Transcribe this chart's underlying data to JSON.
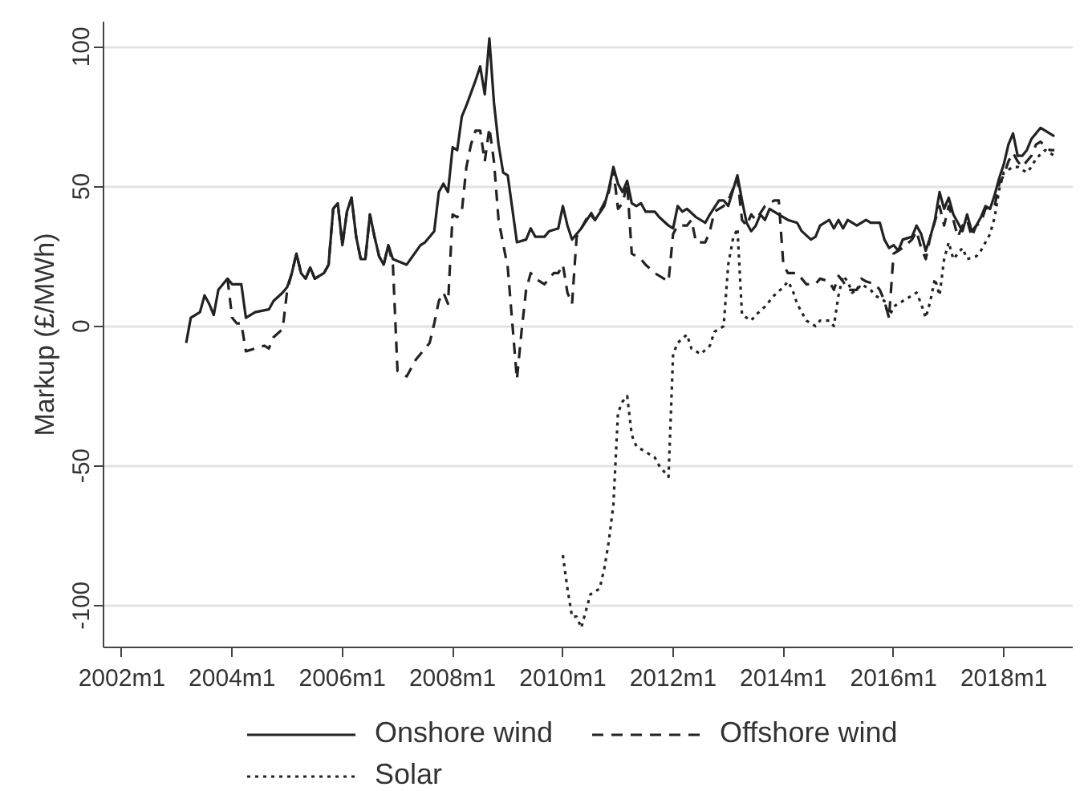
{
  "chart_data": {
    "type": "line",
    "ylabel": "Markup (£/MWh)",
    "xlim": [
      "2001-09",
      "2019-04"
    ],
    "xticks": [
      {
        "value": "2002-01",
        "label": "2002m1"
      },
      {
        "value": "2004-01",
        "label": "2004m1"
      },
      {
        "value": "2006-01",
        "label": "2006m1"
      },
      {
        "value": "2008-01",
        "label": "2008m1"
      },
      {
        "value": "2010-01",
        "label": "2010m1"
      },
      {
        "value": "2012-01",
        "label": "2012m1"
      },
      {
        "value": "2014-01",
        "label": "2014m1"
      },
      {
        "value": "2016-01",
        "label": "2016m1"
      },
      {
        "value": "2018-01",
        "label": "2018m1"
      }
    ],
    "ylim": [
      -115,
      109
    ],
    "yticks": [
      -100,
      -50,
      0,
      50,
      100
    ],
    "grid": "y",
    "legend": "bottom",
    "series": [
      {
        "name": "Onshore wind",
        "color": "#222222",
        "line_style": "solid",
        "x": [
          "2003-03",
          "2003-04",
          "2003-05",
          "2003-06",
          "2003-07",
          "2003-08",
          "2003-09",
          "2003-10",
          "2003-11",
          "2003-12",
          "2004-01",
          "2004-03",
          "2004-04",
          "2004-06",
          "2004-09",
          "2004-10",
          "2004-12",
          "2005-01",
          "2005-02",
          "2005-03",
          "2005-04",
          "2005-05",
          "2005-06",
          "2005-07",
          "2005-09",
          "2005-10",
          "2005-11",
          "2005-12",
          "2006-01",
          "2006-02",
          "2006-03",
          "2006-04",
          "2006-05",
          "2006-06",
          "2006-07",
          "2006-08",
          "2006-09",
          "2006-10",
          "2006-11",
          "2006-12",
          "2007-03",
          "2007-06",
          "2007-07",
          "2007-09",
          "2007-10",
          "2007-11",
          "2007-12",
          "2008-01",
          "2008-02",
          "2008-03",
          "2008-04",
          "2008-06",
          "2008-07",
          "2008-08",
          "2008-09",
          "2008-10",
          "2008-11",
          "2008-12",
          "2009-01",
          "2009-03",
          "2009-05",
          "2009-06",
          "2009-07",
          "2009-09",
          "2009-10",
          "2009-12",
          "2010-01",
          "2010-02",
          "2010-03",
          "2010-05",
          "2010-07",
          "2010-08",
          "2010-10",
          "2010-11",
          "2010-12",
          "2011-01",
          "2011-02",
          "2011-03",
          "2011-04",
          "2011-05",
          "2011-06",
          "2011-07",
          "2011-09",
          "2011-10",
          "2011-12",
          "2012-01",
          "2012-02",
          "2012-03",
          "2012-04",
          "2012-06",
          "2012-08",
          "2012-09",
          "2012-11",
          "2012-12",
          "2013-01",
          "2013-03",
          "2013-04",
          "2013-05",
          "2013-06",
          "2013-07",
          "2013-08",
          "2013-09",
          "2013-10",
          "2013-12",
          "2014-02",
          "2014-04",
          "2014-05",
          "2014-07",
          "2014-08",
          "2014-09",
          "2014-11",
          "2014-12",
          "2015-01",
          "2015-02",
          "2015-03",
          "2015-05",
          "2015-07",
          "2015-08",
          "2015-10",
          "2015-11",
          "2015-12",
          "2016-01",
          "2016-02",
          "2016-03",
          "2016-05",
          "2016-06",
          "2016-07",
          "2016-08",
          "2016-09",
          "2016-10",
          "2016-11",
          "2016-12",
          "2017-01",
          "2017-02",
          "2017-04",
          "2017-05",
          "2017-06",
          "2017-07",
          "2017-08",
          "2017-09",
          "2017-10",
          "2017-11",
          "2017-12",
          "2018-01",
          "2018-02",
          "2018-03",
          "2018-04",
          "2018-05",
          "2018-06",
          "2018-07",
          "2018-09",
          "2018-11",
          "2018-12"
        ],
        "values": [
          -6,
          3,
          4,
          5,
          11,
          8,
          4,
          13,
          15,
          17,
          15,
          15,
          3,
          5,
          6,
          9,
          12,
          14,
          19,
          26,
          19,
          17,
          21,
          17,
          19,
          22,
          42,
          44,
          29,
          41,
          46,
          32,
          24,
          24,
          40,
          32,
          25,
          22,
          29,
          24,
          22,
          29,
          30,
          34,
          48,
          51,
          48,
          64,
          63,
          75,
          79,
          88,
          93,
          83,
          103,
          80,
          65,
          55,
          54,
          30,
          31,
          35,
          32,
          32,
          34,
          35,
          43,
          36,
          31,
          35,
          40,
          38,
          43,
          49,
          57,
          51,
          48,
          52,
          44,
          43,
          44,
          41,
          41,
          39,
          36,
          35,
          43,
          41,
          42,
          39,
          37,
          40,
          45,
          45,
          43,
          54,
          45,
          37,
          34,
          36,
          40,
          38,
          42,
          40,
          38,
          37,
          34,
          31,
          32,
          36,
          38,
          35,
          38,
          35,
          38,
          36,
          38,
          37,
          37,
          31,
          28,
          29,
          27,
          31,
          32,
          36,
          33,
          27,
          32,
          38,
          48,
          42,
          46,
          40,
          34,
          40,
          34,
          36,
          39,
          43,
          42,
          47,
          53,
          58,
          65,
          69,
          61,
          61,
          63,
          67,
          71,
          69,
          68
        ]
      },
      {
        "name": "Offshore wind",
        "color": "#222222",
        "line_style": "dashed",
        "x": [
          "2003-12",
          "2004-01",
          "2004-02",
          "2004-03",
          "2004-04",
          "2004-06",
          "2004-08",
          "2004-09",
          "2004-10",
          "2004-12",
          "2005-01",
          "2005-02",
          "2005-03",
          "2005-04",
          "2005-05",
          "2005-06",
          "2005-07",
          "2005-09",
          "2005-10",
          "2005-11",
          "2005-12",
          "2006-01",
          "2006-02",
          "2006-03",
          "2006-04",
          "2006-05",
          "2006-06",
          "2006-07",
          "2006-08",
          "2006-09",
          "2006-10",
          "2006-11",
          "2006-12",
          "2007-01",
          "2007-03",
          "2007-05",
          "2007-08",
          "2007-09",
          "2007-10",
          "2007-11",
          "2007-12",
          "2008-01",
          "2008-02",
          "2008-03",
          "2008-04",
          "2008-05",
          "2008-06",
          "2008-07",
          "2008-08",
          "2008-09",
          "2008-10",
          "2008-11",
          "2009-01",
          "2009-02",
          "2009-03",
          "2009-04",
          "2009-05",
          "2009-06",
          "2009-07",
          "2009-09",
          "2009-11",
          "2009-12",
          "2010-01",
          "2010-02",
          "2010-03",
          "2010-04",
          "2010-05",
          "2010-07",
          "2010-08",
          "2010-10",
          "2010-11",
          "2010-12",
          "2011-01",
          "2011-02",
          "2011-03",
          "2011-04",
          "2011-06",
          "2011-07",
          "2011-09",
          "2011-11",
          "2011-12",
          "2012-01",
          "2012-02",
          "2012-04",
          "2012-05",
          "2012-06",
          "2012-08",
          "2012-09",
          "2012-10",
          "2012-12",
          "2013-01",
          "2013-03",
          "2013-04",
          "2013-05",
          "2013-06",
          "2013-07",
          "2013-09",
          "2013-10",
          "2013-11",
          "2013-12",
          "2014-01",
          "2014-02",
          "2014-04",
          "2014-06",
          "2014-08",
          "2014-09",
          "2014-11",
          "2014-12",
          "2015-01",
          "2015-02",
          "2015-03",
          "2015-05",
          "2015-06",
          "2015-07",
          "2015-09",
          "2015-10",
          "2015-11",
          "2015-12",
          "2016-01",
          "2016-02",
          "2016-03",
          "2016-05",
          "2016-06",
          "2016-07",
          "2016-08",
          "2016-09",
          "2016-11",
          "2016-12",
          "2017-01",
          "2017-02",
          "2017-03",
          "2017-04",
          "2017-05",
          "2017-06",
          "2017-07",
          "2017-08",
          "2017-09",
          "2017-11",
          "2017-12",
          "2018-01",
          "2018-02",
          "2018-03",
          "2018-04",
          "2018-05",
          "2018-06",
          "2018-07",
          "2018-08",
          "2018-09",
          "2018-11",
          "2018-12"
        ],
        "values": [
          17,
          3,
          1,
          1,
          -9,
          -8,
          -7,
          -8,
          -4,
          -1,
          13,
          19,
          26,
          19,
          17,
          21,
          17,
          19,
          22,
          42,
          44,
          29,
          41,
          46,
          32,
          24,
          24,
          40,
          32,
          25,
          22,
          29,
          22,
          -16,
          -18,
          -12,
          -6,
          1,
          9,
          12,
          8,
          40,
          39,
          41,
          57,
          65,
          70,
          70,
          59,
          71,
          59,
          38,
          21,
          1,
          -19,
          -2,
          13,
          19,
          17,
          15,
          19,
          19,
          22,
          12,
          8,
          32,
          35,
          41,
          38,
          44,
          48,
          56,
          42,
          44,
          51,
          26,
          24,
          22,
          19,
          17,
          16,
          33,
          36,
          36,
          38,
          30,
          30,
          34,
          41,
          43,
          45,
          53,
          38,
          36,
          40,
          38,
          43,
          44,
          45,
          45,
          22,
          19,
          19,
          15,
          15,
          17,
          16,
          13,
          18,
          16,
          13,
          13,
          17,
          16,
          15,
          13,
          9,
          3,
          26,
          27,
          28,
          31,
          34,
          28,
          24,
          32,
          43,
          36,
          43,
          38,
          32,
          36,
          38,
          32,
          36,
          37,
          42,
          43,
          51,
          54,
          59,
          62,
          59,
          57,
          59,
          61,
          65,
          66,
          63,
          63
        ]
      },
      {
        "name": "Solar",
        "color": "#222222",
        "line_style": "dotted",
        "x": [
          "2010-01",
          "2010-02",
          "2010-03",
          "2010-04",
          "2010-05",
          "2010-06",
          "2010-07",
          "2010-09",
          "2010-10",
          "2010-11",
          "2010-12",
          "2011-01",
          "2011-02",
          "2011-03",
          "2011-04",
          "2011-05",
          "2011-07",
          "2011-09",
          "2011-10",
          "2011-12",
          "2012-01",
          "2012-02",
          "2012-04",
          "2012-05",
          "2012-07",
          "2012-09",
          "2012-10",
          "2012-12",
          "2013-01",
          "2013-02",
          "2013-03",
          "2013-04",
          "2013-06",
          "2013-07",
          "2013-09",
          "2013-11",
          "2014-01",
          "2014-02",
          "2014-03",
          "2014-04",
          "2014-06",
          "2014-08",
          "2014-09",
          "2014-11",
          "2014-12",
          "2015-01",
          "2015-02",
          "2015-03",
          "2015-04",
          "2015-05",
          "2015-06",
          "2015-08",
          "2015-09",
          "2015-11",
          "2015-12",
          "2016-01",
          "2016-02",
          "2016-04",
          "2016-06",
          "2016-07",
          "2016-08",
          "2016-09",
          "2016-10",
          "2016-11",
          "2016-12",
          "2017-01",
          "2017-02",
          "2017-04",
          "2017-05",
          "2017-07",
          "2017-08",
          "2017-09",
          "2017-10",
          "2017-11",
          "2017-12",
          "2018-01",
          "2018-03",
          "2018-04",
          "2018-06",
          "2018-07",
          "2018-08",
          "2018-10",
          "2018-11",
          "2018-12"
        ],
        "values": [
          -82,
          -94,
          -104,
          -104,
          -108,
          -102,
          -96,
          -94,
          -87,
          -77,
          -64,
          -31,
          -27,
          -25,
          -39,
          -43,
          -45,
          -47,
          -50,
          -54,
          -10,
          -6,
          -3,
          -8,
          -10,
          -7,
          -2,
          0,
          22,
          31,
          35,
          4,
          2,
          4,
          7,
          11,
          14,
          16,
          13,
          8,
          2,
          0,
          2,
          2,
          0,
          11,
          18,
          16,
          12,
          13,
          15,
          13,
          11,
          9,
          3,
          7,
          8,
          10,
          12,
          8,
          3,
          9,
          17,
          11,
          24,
          30,
          24,
          28,
          24,
          25,
          27,
          30,
          33,
          39,
          49,
          55,
          57,
          57,
          55,
          57,
          60,
          63,
          62,
          61
        ]
      }
    ]
  }
}
